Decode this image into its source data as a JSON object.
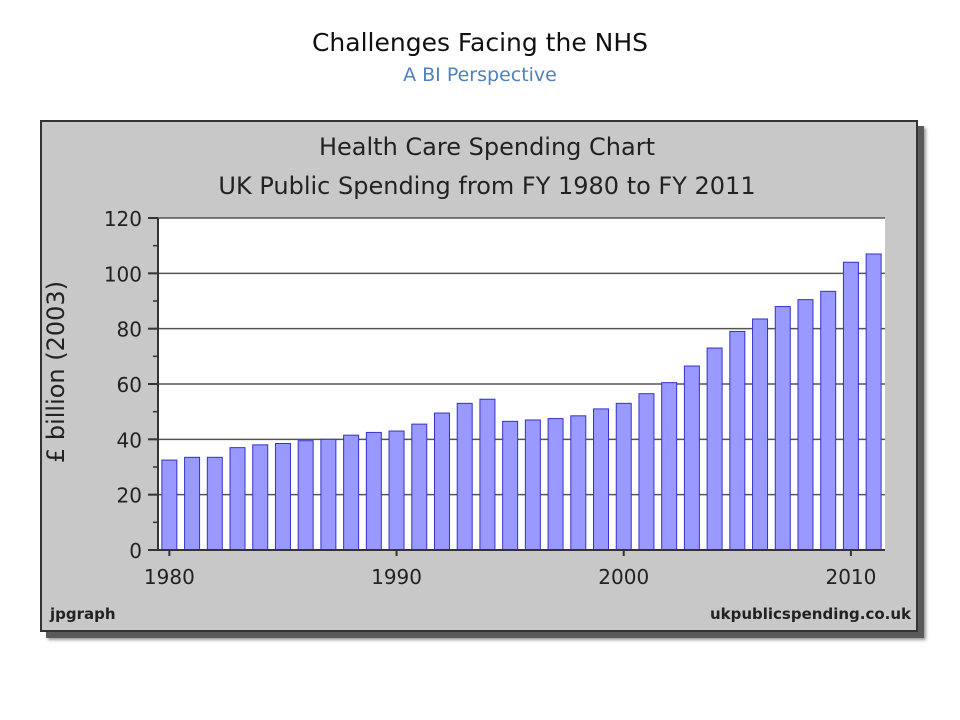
{
  "slide": {
    "title": "Challenges Facing the NHS",
    "subtitle": "A BI Perspective",
    "subtitle_color": "#4f81bd"
  },
  "chart_data": {
    "type": "bar",
    "title": "Health Care Spending Chart",
    "subtitle": "UK Public Spending from FY 1980 to FY 2011",
    "ylabel": "£ billion (2003)",
    "xlabel": "",
    "ylim": [
      0,
      120
    ],
    "yticks": [
      0,
      20,
      40,
      60,
      80,
      100,
      120
    ],
    "xtick_labels": [
      "1980",
      "1990",
      "2000",
      "2010"
    ],
    "grid": true,
    "bar_color": "#9999ff",
    "bar_edge_color": "#3333cc",
    "plot_background": "#ffffff",
    "frame_background": "#c8c8c8",
    "footer_left": "jpgraph",
    "footer_right": "ukpublicspending.co.uk",
    "categories": [
      "1980",
      "1981",
      "1982",
      "1983",
      "1984",
      "1985",
      "1986",
      "1987",
      "1988",
      "1989",
      "1990",
      "1991",
      "1992",
      "1993",
      "1994",
      "1995",
      "1996",
      "1997",
      "1998",
      "1999",
      "2000",
      "2001",
      "2002",
      "2003",
      "2004",
      "2005",
      "2006",
      "2007",
      "2008",
      "2009",
      "2010",
      "2011"
    ],
    "values": [
      32.5,
      33.5,
      33.5,
      37,
      38,
      38.5,
      39.5,
      40,
      41.5,
      42.5,
      43,
      45.5,
      49.5,
      53,
      54.5,
      46.5,
      47,
      47.5,
      48.5,
      51,
      53,
      56.5,
      60.5,
      66.5,
      73,
      79,
      83.5,
      88,
      90.5,
      93.5,
      104,
      107
    ]
  }
}
